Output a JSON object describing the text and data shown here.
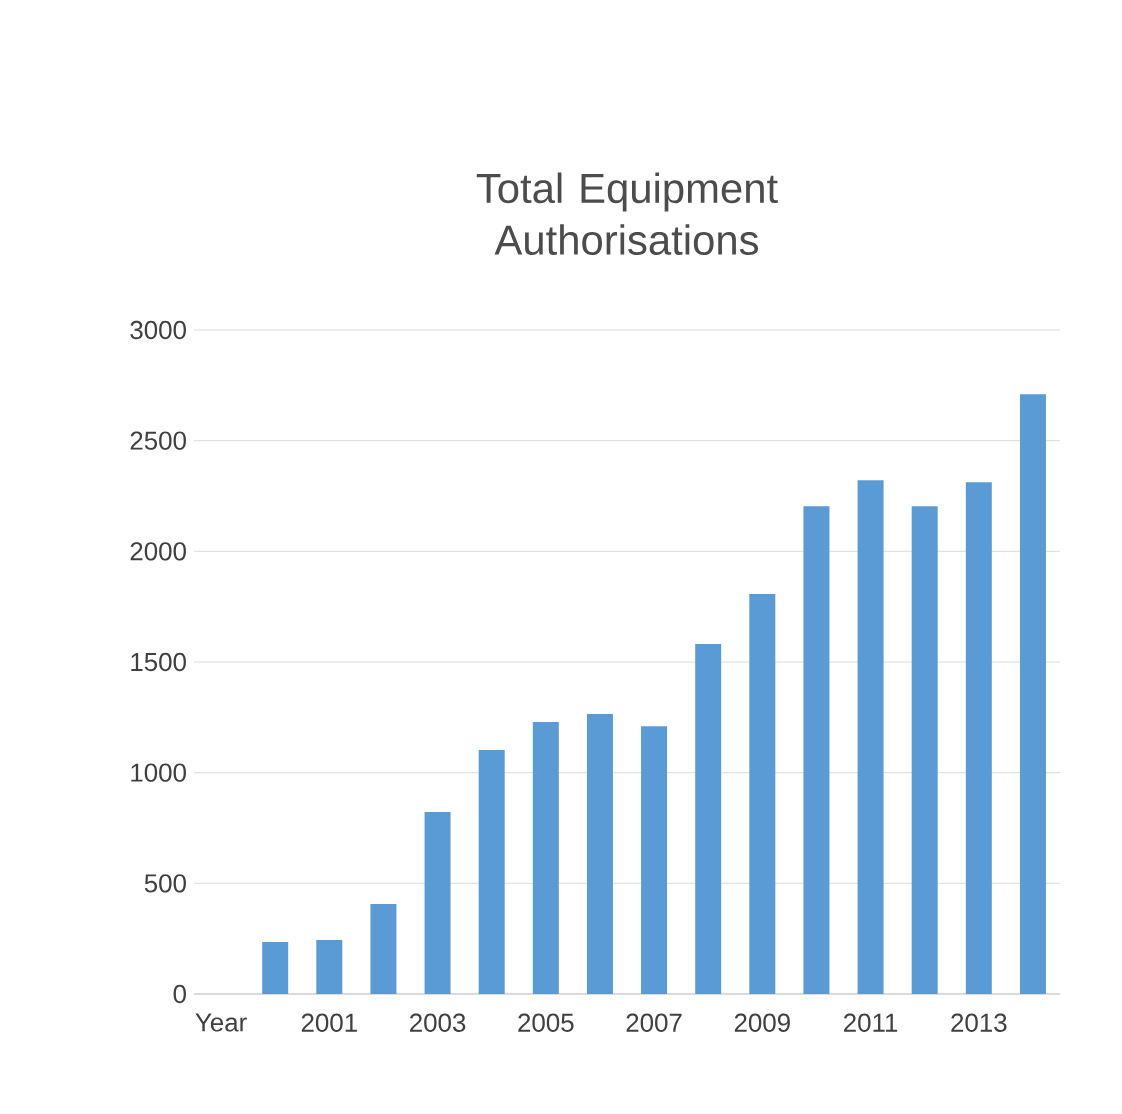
{
  "chart_data": {
    "type": "bar",
    "title": "Total Equipment Authorisations",
    "categories": [
      "Year",
      null,
      "2001",
      null,
      "2003",
      null,
      "2005",
      null,
      "2007",
      null,
      "2009",
      null,
      "2011",
      null,
      "2013",
      null
    ],
    "values": [
      null,
      235,
      244,
      407,
      822,
      1102,
      1229,
      1265,
      1210,
      1581,
      1807,
      2204,
      2321,
      2204,
      2312,
      2710
    ],
    "color": "#5b9bd5",
    "ylim": [
      0,
      3000
    ],
    "yticks": [
      0,
      500,
      1000,
      1500,
      2000,
      2500,
      3000
    ],
    "grid": "y"
  }
}
